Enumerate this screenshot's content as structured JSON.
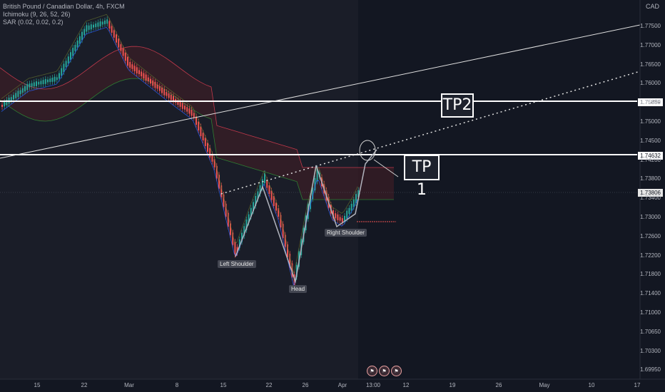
{
  "legend": {
    "symbol": "British Pound / Canadian Dollar, 4h, FXCM",
    "ichimoku": "Ichimoku (9, 26, 52, 26)",
    "sar": "SAR (0.02, 0.02, 0.2)"
  },
  "currency": "CAD",
  "annotations": {
    "tp2": "TP2",
    "tp1": "TP 1",
    "left_shoulder": "Left Shoulder",
    "head": "Head",
    "right_shoulder": "Right Shoulder"
  },
  "price_tags": {
    "tp2": "1.75859",
    "tp1": "1.74632",
    "last": "1.73806"
  },
  "colors": {
    "background": "#131722",
    "up": "#26a69a",
    "down": "#ef5350",
    "kumo_bull": "#1e4d2b",
    "kumo_bear": "#5a1e28",
    "lines": "#ffffff"
  },
  "event_icons": [
    "flag-icon",
    "flag-icon",
    "flag-icon"
  ],
  "chart_data": {
    "type": "candlestick",
    "yticks": [
      "1.77500",
      "1.77000",
      "1.76500",
      "1.76000",
      "1.75500",
      "1.75000",
      "1.74500",
      "1.74200",
      "1.73800",
      "1.73400",
      "1.73000",
      "1.72600",
      "1.72200",
      "1.71800",
      "1.71400",
      "1.71000",
      "1.70650",
      "1.70300",
      "1.69950"
    ],
    "xticks": [
      "15",
      "22",
      "Mar",
      "8",
      "15",
      "22",
      "26",
      "Apr",
      "13:00",
      "12",
      "19",
      "26",
      "May",
      "10",
      "17"
    ],
    "horizontal_levels": [
      {
        "name": "TP2",
        "value": 1.75859
      },
      {
        "name": "TP 1",
        "value": 1.74632
      }
    ],
    "last_price": 1.73806,
    "pattern": "Head and Shoulders (inverse)",
    "pattern_points": [
      {
        "label": "Left Shoulder",
        "value": 1.7235
      },
      {
        "label": "Head",
        "value": 1.7185
      },
      {
        "label": "Right Shoulder",
        "value": 1.7305
      }
    ],
    "ylim": [
      1.6975,
      1.7775
    ]
  }
}
